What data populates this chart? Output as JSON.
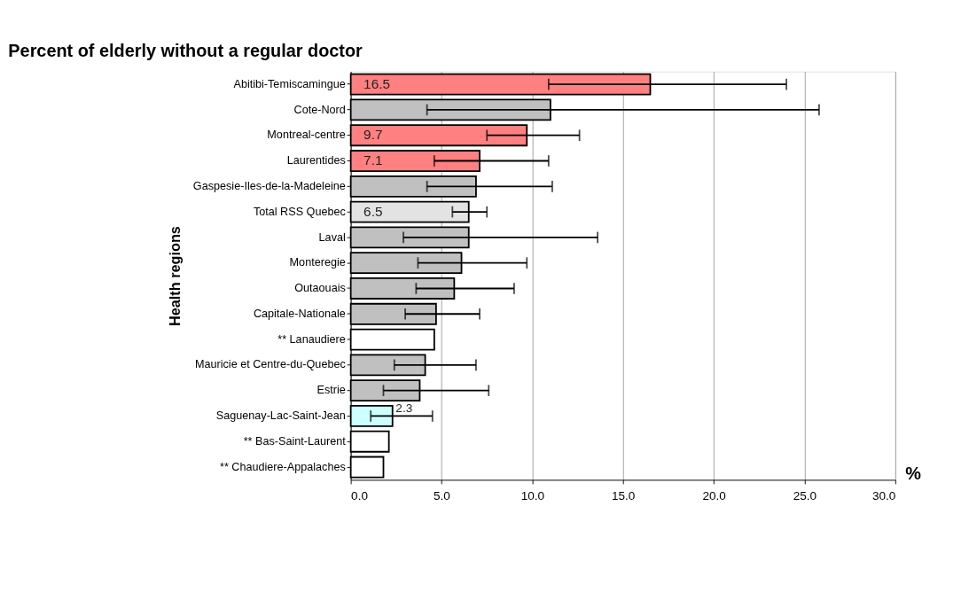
{
  "chart_data": {
    "type": "bar",
    "orientation": "horizontal",
    "title": "Percent of elderly without a regular doctor",
    "ylabel": "Health regions",
    "xlabel": "%",
    "categories": [
      "Abitibi-Temiscamingue",
      "Cote-Nord",
      "Montreal-centre",
      "Laurentides",
      "Gaspesie-Iles-de-la-Madeleine",
      "Total RSS Quebec",
      "Laval",
      "Monteregie",
      "Outaouais",
      "Capitale-Nationale",
      "** Lanaudiere",
      "Mauricie et Centre-du-Quebec",
      "Estrie",
      "Saguenay-Lac-Saint-Jean",
      "** Bas-Saint-Laurent",
      "** Chaudiere-Appalaches"
    ],
    "values": [
      16.5,
      11.0,
      9.7,
      7.1,
      6.9,
      6.5,
      6.5,
      6.1,
      5.7,
      4.7,
      4.6,
      4.1,
      3.8,
      2.3,
      2.1,
      1.8
    ],
    "colors": [
      "#ff8080",
      "#c0c0c0",
      "#ff8080",
      "#ff8080",
      "#c0c0c0",
      "#e3e3e3",
      "#c0c0c0",
      "#c0c0c0",
      "#c0c0c0",
      "#c0c0c0",
      "#ffffff",
      "#c0c0c0",
      "#c0c0c0",
      "#ccffff",
      "#ffffff",
      "#ffffff"
    ],
    "errors": [
      [
        10.9,
        24.0
      ],
      [
        4.2,
        25.8
      ],
      [
        7.5,
        12.6
      ],
      [
        4.6,
        10.9
      ],
      [
        4.2,
        11.1
      ],
      [
        5.6,
        7.5
      ],
      [
        2.9,
        13.6
      ],
      [
        3.7,
        9.7
      ],
      [
        3.6,
        9.0
      ],
      [
        3.0,
        7.1
      ],
      null,
      [
        2.4,
        6.9
      ],
      [
        1.8,
        7.6
      ],
      [
        1.1,
        4.5
      ],
      null,
      null
    ],
    "value_labels": [
      "16.5",
      null,
      "9.7",
      "7.1",
      null,
      "6.5",
      null,
      null,
      null,
      null,
      null,
      null,
      null,
      "2.3",
      null,
      null
    ],
    "xlim": [
      0,
      30
    ],
    "xticks": [
      {
        "value": 0,
        "label": "0.0"
      },
      {
        "value": 5,
        "label": "5.0"
      },
      {
        "value": 10,
        "label": "10.0"
      },
      {
        "value": 15,
        "label": "15.0"
      },
      {
        "value": 20,
        "label": "20.0"
      },
      {
        "value": 25,
        "label": "25.0"
      },
      {
        "value": 30,
        "label": "30.0"
      }
    ],
    "grid": "x",
    "legend": false
  }
}
